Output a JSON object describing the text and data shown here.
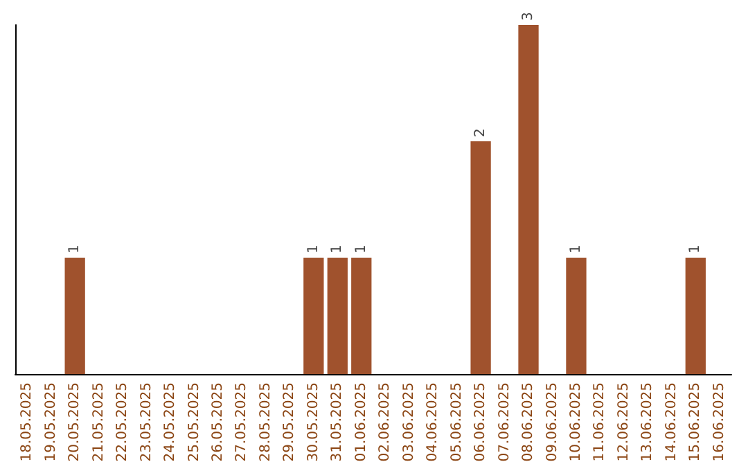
{
  "chart_data": {
    "type": "bar",
    "categories": [
      "18.05.2025",
      "19.05.2025",
      "20.05.2025",
      "21.05.2025",
      "22.05.2025",
      "23.05.2025",
      "24.05.2025",
      "25.05.2025",
      "26.05.2025",
      "27.05.2025",
      "28.05.2025",
      "29.05.2025",
      "30.05.2025",
      "31.05.2025",
      "01.06.2025",
      "02.06.2025",
      "03.06.2025",
      "04.06.2025",
      "05.06.2025",
      "06.06.2025",
      "07.06.2025",
      "08.06.2025",
      "09.06.2025",
      "10.06.2025",
      "11.06.2025",
      "12.06.2025",
      "13.06.2025",
      "14.06.2025",
      "15.06.2025",
      "16.06.2025"
    ],
    "values": [
      0,
      0,
      1,
      0,
      0,
      0,
      0,
      0,
      0,
      0,
      0,
      0,
      1,
      1,
      1,
      0,
      0,
      0,
      0,
      2,
      0,
      3,
      0,
      1,
      0,
      0,
      0,
      0,
      1,
      0
    ],
    "value_labels": [
      null,
      null,
      "1",
      null,
      null,
      null,
      null,
      null,
      null,
      null,
      null,
      null,
      "1",
      "1",
      "1",
      null,
      null,
      null,
      null,
      "2",
      null,
      "3",
      null,
      "1",
      null,
      null,
      null,
      null,
      "1",
      null
    ],
    "color": "#a0522d",
    "grid": false,
    "tick_labels": "x"
  }
}
